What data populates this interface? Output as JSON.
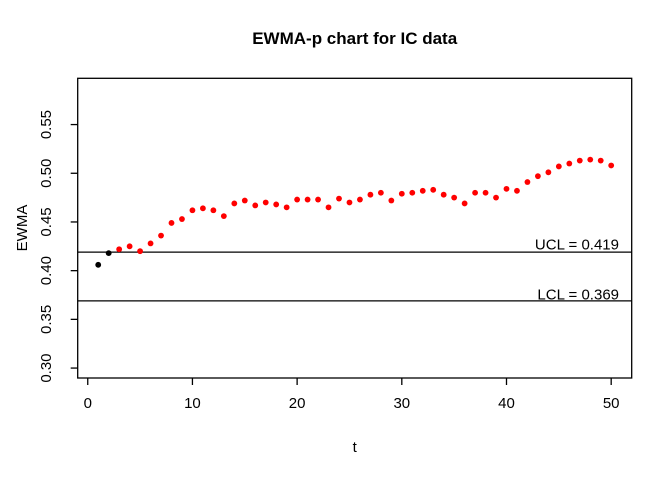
{
  "title": "EWMA-p chart for IC data",
  "chart_data": {
    "type": "scatter",
    "title": "EWMA-p chart for IC data",
    "xlabel": "t",
    "ylabel": "EWMA",
    "x_ticks": [
      0,
      10,
      20,
      30,
      40,
      50
    ],
    "y_ticks": [
      "0.30",
      "0.35",
      "0.40",
      "0.45",
      "0.50",
      "0.55"
    ],
    "xlim": [
      -0.96,
      51.96
    ],
    "ylim": [
      0.2898,
      0.5975
    ],
    "grid": false,
    "legend": "none",
    "control_limits": {
      "ucl": {
        "value": 0.419,
        "label": "UCL = 0.419"
      },
      "lcl": {
        "value": 0.369,
        "label": "LCL = 0.369"
      }
    },
    "series": [
      {
        "name": "initial-points",
        "color": "#000000",
        "x": [
          1,
          2
        ],
        "y": [
          0.406,
          0.418
        ]
      },
      {
        "name": "ewma-points",
        "color": "#ff0000",
        "x": [
          3,
          4,
          5,
          6,
          7,
          8,
          9,
          10,
          11,
          12,
          13,
          14,
          15,
          16,
          17,
          18,
          19,
          20,
          21,
          22,
          23,
          24,
          25,
          26,
          27,
          28,
          29,
          30,
          31,
          32,
          33,
          34,
          35,
          36,
          37,
          38,
          39,
          40,
          41,
          42,
          43,
          44,
          45,
          46,
          47,
          48,
          49,
          50
        ],
        "y": [
          0.422,
          0.425,
          0.42,
          0.428,
          0.436,
          0.449,
          0.453,
          0.462,
          0.464,
          0.462,
          0.456,
          0.469,
          0.472,
          0.467,
          0.47,
          0.468,
          0.465,
          0.473,
          0.473,
          0.473,
          0.465,
          0.474,
          0.47,
          0.473,
          0.478,
          0.48,
          0.472,
          0.479,
          0.48,
          0.482,
          0.483,
          0.478,
          0.475,
          0.469,
          0.48,
          0.48,
          0.475,
          0.484,
          0.482,
          0.491,
          0.497,
          0.501,
          0.507,
          0.51,
          0.513,
          0.514,
          0.513,
          0.508
        ]
      }
    ]
  },
  "colors": {
    "background": "#ffffff",
    "axis_line": "#000000",
    "control_line": "#000000",
    "point_red": "#ff0000",
    "point_black": "#000000"
  }
}
